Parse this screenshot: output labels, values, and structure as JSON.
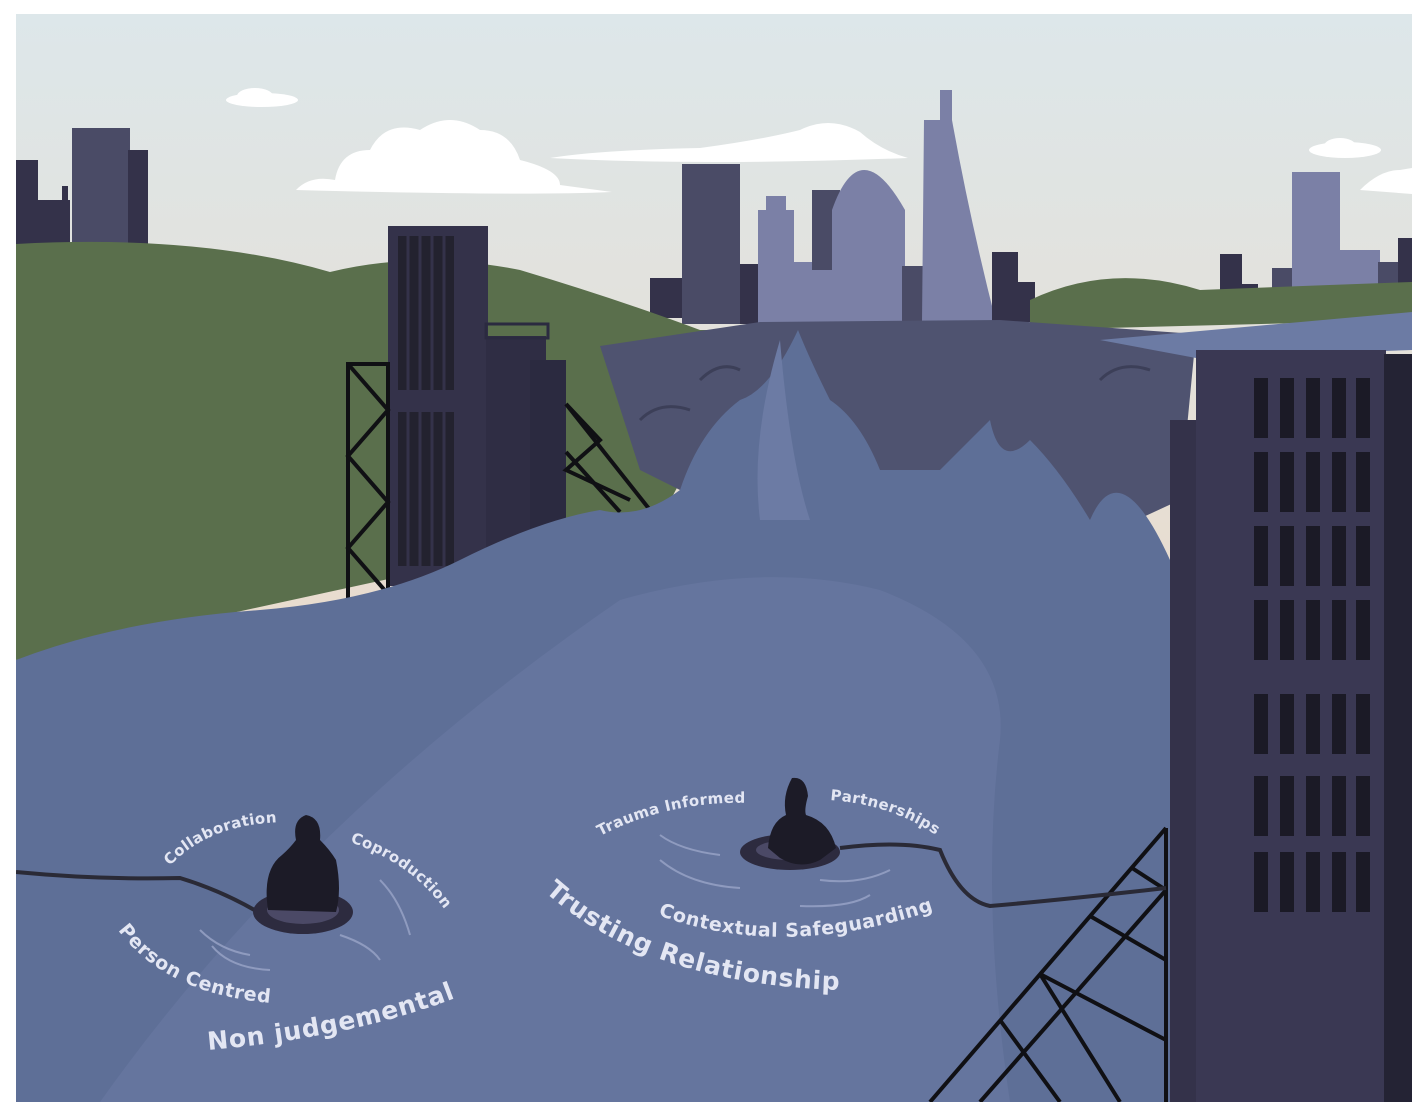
{
  "illustration": {
    "swimmer_left": {
      "labels": {
        "collaboration": "Collaboration",
        "coproduction": "Coproduction",
        "person_centred": "Person Centred",
        "non_judgemental": "Non judgemental"
      }
    },
    "swimmer_right": {
      "labels": {
        "trauma_informed": "Trauma Informed",
        "partnerships": "Partnerships",
        "contextual_safeguarding": "Contextual Safeguarding",
        "trusting_relationships": "Trusting Relationships"
      }
    }
  },
  "colors": {
    "sky_top": "#dde7ea",
    "sky_bottom": "#f0d2b6",
    "hills": "#5a6f4c",
    "water": "#5e6f97",
    "water_light": "#6c7ba4",
    "building_dark": "#34324a",
    "building_mid": "#4a4b66",
    "building_light": "#7b80a6",
    "scaffold": "#101014",
    "label_text": "#e3e6f3"
  }
}
